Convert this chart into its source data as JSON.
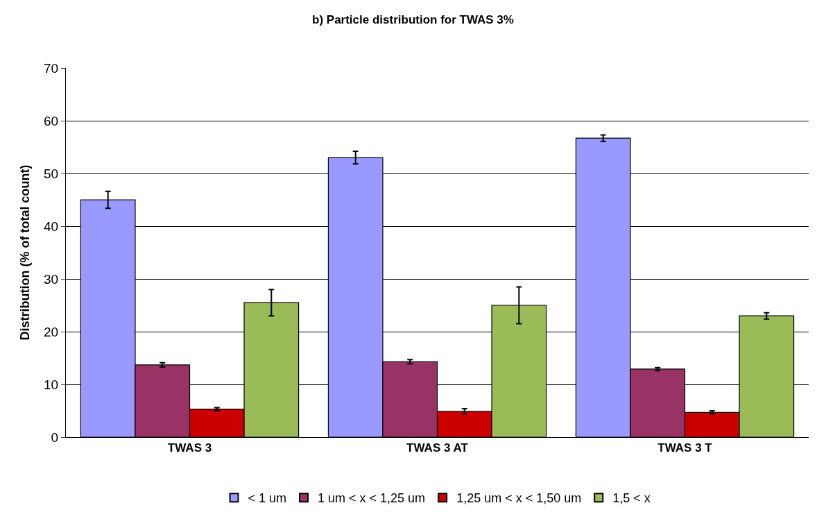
{
  "chart_data": {
    "type": "bar",
    "title": "b) Particle distribution for TWAS 3%",
    "ylabel": "Distribution (% of total count)",
    "categories": [
      "TWAS 3",
      "TWAS 3 AT",
      "TWAS 3 T"
    ],
    "series": [
      {
        "name": "< 1 um",
        "color": "#9999ff",
        "values": [
          45,
          53,
          56.7
        ],
        "errors": [
          1.6,
          1.2,
          0.6
        ]
      },
      {
        "name": "1 um < x < 1,25 um",
        "color": "#993366",
        "values": [
          13.7,
          14.3,
          12.9
        ],
        "errors": [
          0.4,
          0.4,
          0.3
        ]
      },
      {
        "name": "1,25 um < x < 1,50 um",
        "color": "#cc0000",
        "values": [
          5.3,
          4.9,
          4.7
        ],
        "errors": [
          0.3,
          0.5,
          0.3
        ]
      },
      {
        "name": "1,5 < x",
        "color": "#9bbb59",
        "values": [
          25.5,
          25,
          23
        ],
        "errors": [
          2.5,
          3.5,
          0.6
        ]
      }
    ],
    "ylim": [
      0,
      70
    ],
    "yticks": [
      0,
      10,
      20,
      30,
      40,
      50,
      60,
      70
    ],
    "grid": "y",
    "legend": "bottom"
  }
}
